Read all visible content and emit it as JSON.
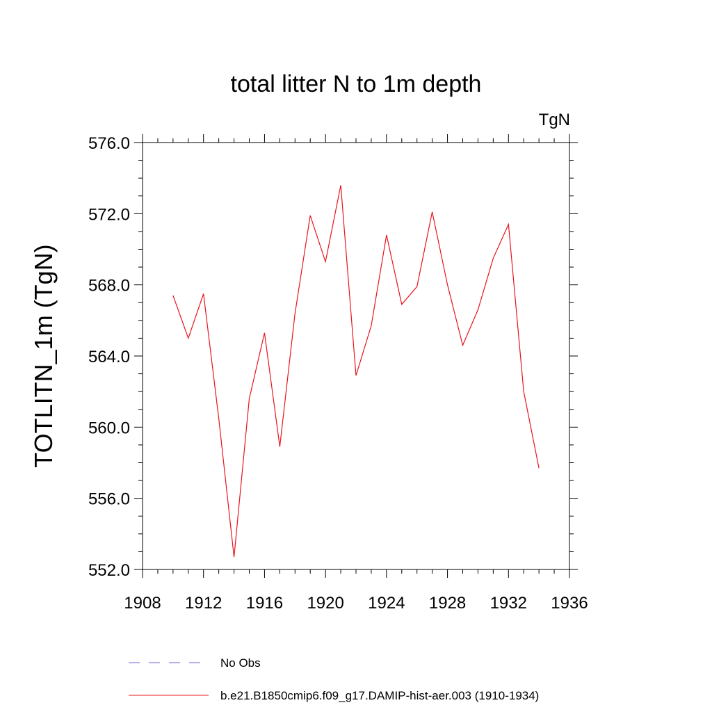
{
  "chart_data": {
    "type": "line",
    "title": "total litter N to 1m depth",
    "units_label": "TgN",
    "ylabel": "TOTLITN_1m  (TgN)",
    "xlabel": "",
    "xlim": [
      1908,
      1936
    ],
    "ylim": [
      552.0,
      576.0
    ],
    "x_ticks": [
      1908,
      1912,
      1916,
      1920,
      1924,
      1928,
      1932,
      1936
    ],
    "x_tick_labels": [
      "1908",
      "1912",
      "1916",
      "1920",
      "1924",
      "1928",
      "1932",
      "1936"
    ],
    "y_ticks": [
      552,
      556,
      560,
      564,
      568,
      572,
      576
    ],
    "y_tick_labels": [
      "552.0",
      "556.0",
      "560.0",
      "564.0",
      "568.0",
      "572.0",
      "576.0"
    ],
    "grid": false,
    "legend_position": "bottom",
    "series": [
      {
        "name": "b.e21.B1850cmip6.f09_g17.DAMIP-hist-aer.003 (1910-1934)",
        "color": "#e8141c",
        "style": "solid",
        "x": [
          1910,
          1911,
          1912,
          1913,
          1914,
          1915,
          1916,
          1917,
          1918,
          1919,
          1920,
          1921,
          1922,
          1923,
          1924,
          1925,
          1926,
          1927,
          1928,
          1929,
          1930,
          1931,
          1932,
          1933,
          1934
        ],
        "values": [
          567.4,
          565.0,
          567.5,
          560.5,
          552.7,
          561.6,
          565.3,
          558.9,
          566.4,
          571.9,
          569.3,
          573.6,
          562.9,
          565.7,
          570.8,
          566.9,
          567.9,
          572.1,
          568.0,
          564.6,
          566.6,
          569.5,
          571.4,
          562.0,
          557.7
        ]
      }
    ],
    "legend": [
      {
        "label": "No Obs",
        "color": "#6b5fd9",
        "style": "dashed"
      },
      {
        "label": "b.e21.B1850cmip6.f09_g17.DAMIP-hist-aer.003 (1910-1934)",
        "color": "#e8141c",
        "style": "solid"
      }
    ]
  }
}
